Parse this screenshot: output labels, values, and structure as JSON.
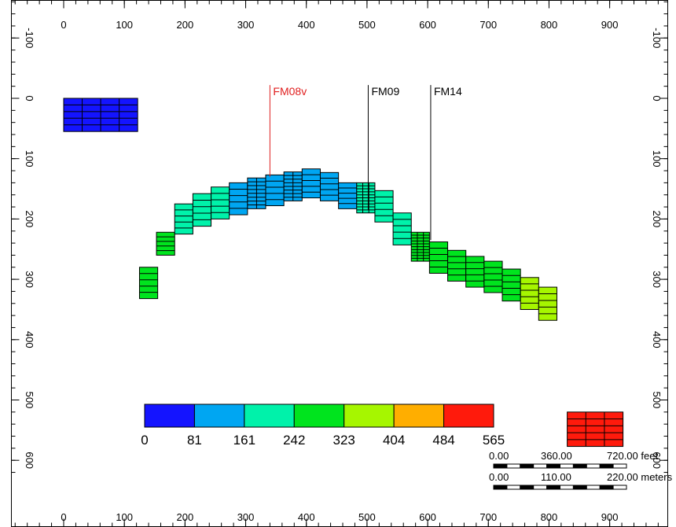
{
  "chart_data": {
    "type": "scatter",
    "title": "",
    "xlabel": "",
    "ylabel": "",
    "xlim": [
      -104,
      1020
    ],
    "ylim": [
      -172,
      620
    ],
    "x_ticks": [
      0,
      100,
      200,
      300,
      400,
      500,
      600,
      700,
      800,
      900
    ],
    "y_ticks": [
      -100,
      0,
      100,
      200,
      300,
      400,
      500,
      600
    ],
    "colorbar": {
      "colors": [
        "#1414ff",
        "#00a6f2",
        "#00f2aa",
        "#00e41e",
        "#a6f600",
        "#ffae00",
        "#ff1a0c"
      ],
      "tick_labels": [
        "0",
        "81",
        "161",
        "242",
        "323",
        "404",
        "484",
        "565"
      ]
    },
    "wells": [
      {
        "name": "FM08v",
        "x": 340,
        "y": 130,
        "color": "#e02020"
      },
      {
        "name": "FM09",
        "x": 502,
        "y": 185,
        "color": "#000000"
      },
      {
        "name": "FM14",
        "x": 605,
        "y": 235,
        "color": "#000000"
      }
    ],
    "blocks": [
      {
        "x": 0,
        "y_top": 0,
        "y_bottom": 55,
        "width": 122,
        "rows": 5,
        "cols": 4,
        "value": 20
      },
      {
        "x": 125,
        "y_top": 280,
        "y_bottom": 332,
        "width": 30,
        "rows": 5,
        "cols": 1,
        "value": 300
      },
      {
        "x": 153,
        "y_top": 222,
        "y_bottom": 260,
        "width": 30,
        "rows": 5,
        "cols": 1,
        "value": 250
      },
      {
        "x": 183,
        "y_top": 175,
        "y_bottom": 225,
        "width": 30,
        "rows": 5,
        "cols": 1,
        "value": 200
      },
      {
        "x": 213,
        "y_top": 158,
        "y_bottom": 212,
        "width": 30,
        "rows": 5,
        "cols": 1,
        "value": 185
      },
      {
        "x": 243,
        "y_top": 147,
        "y_bottom": 200,
        "width": 30,
        "rows": 5,
        "cols": 1,
        "value": 170
      },
      {
        "x": 273,
        "y_top": 140,
        "y_bottom": 193,
        "width": 30,
        "rows": 5,
        "cols": 1,
        "value": 160
      },
      {
        "x": 303,
        "y_top": 132,
        "y_bottom": 183,
        "width": 30,
        "rows": 8,
        "cols": 2,
        "value": 160
      },
      {
        "x": 333,
        "y_top": 127,
        "y_bottom": 178,
        "width": 30,
        "rows": 5,
        "cols": 1,
        "value": 150
      },
      {
        "x": 363,
        "y_top": 122,
        "y_bottom": 170,
        "width": 30,
        "rows": 8,
        "cols": 2,
        "value": 150
      },
      {
        "x": 393,
        "y_top": 117,
        "y_bottom": 165,
        "width": 30,
        "rows": 5,
        "cols": 1,
        "value": 140
      },
      {
        "x": 423,
        "y_top": 123,
        "y_bottom": 170,
        "width": 30,
        "rows": 5,
        "cols": 1,
        "value": 145
      },
      {
        "x": 453,
        "y_top": 140,
        "y_bottom": 183,
        "width": 30,
        "rows": 5,
        "cols": 1,
        "value": 160
      },
      {
        "x": 483,
        "y_top": 140,
        "y_bottom": 190,
        "width": 30,
        "rows": 10,
        "cols": 3,
        "value": 175
      },
      {
        "x": 513,
        "y_top": 153,
        "y_bottom": 205,
        "width": 30,
        "rows": 5,
        "cols": 1,
        "value": 190
      },
      {
        "x": 543,
        "y_top": 190,
        "y_bottom": 243,
        "width": 30,
        "rows": 5,
        "cols": 1,
        "value": 240
      },
      {
        "x": 573,
        "y_top": 222,
        "y_bottom": 270,
        "width": 30,
        "rows": 10,
        "cols": 3,
        "value": 245
      },
      {
        "x": 603,
        "y_top": 238,
        "y_bottom": 290,
        "width": 30,
        "rows": 5,
        "cols": 1,
        "value": 260
      },
      {
        "x": 633,
        "y_top": 252,
        "y_bottom": 303,
        "width": 30,
        "rows": 5,
        "cols": 1,
        "value": 275
      },
      {
        "x": 663,
        "y_top": 262,
        "y_bottom": 313,
        "width": 30,
        "rows": 5,
        "cols": 1,
        "value": 285
      },
      {
        "x": 693,
        "y_top": 270,
        "y_bottom": 322,
        "width": 30,
        "rows": 5,
        "cols": 1,
        "value": 295
      },
      {
        "x": 723,
        "y_top": 283,
        "y_bottom": 336,
        "width": 30,
        "rows": 5,
        "cols": 1,
        "value": 310
      },
      {
        "x": 753,
        "y_top": 297,
        "y_bottom": 350,
        "width": 30,
        "rows": 5,
        "cols": 1,
        "value": 325
      },
      {
        "x": 783,
        "y_top": 313,
        "y_bottom": 368,
        "width": 30,
        "rows": 5,
        "cols": 1,
        "value": 340
      },
      {
        "x": 830,
        "y_top": 520,
        "y_bottom": 577,
        "width": 92,
        "rows": 5,
        "cols": 3,
        "value": 560
      }
    ],
    "scale_bars": [
      {
        "labels": [
          "0.00",
          "360.00",
          "720.00 feet"
        ]
      },
      {
        "labels": [
          "0.00",
          "110.00",
          "220.00 meters"
        ]
      }
    ]
  }
}
